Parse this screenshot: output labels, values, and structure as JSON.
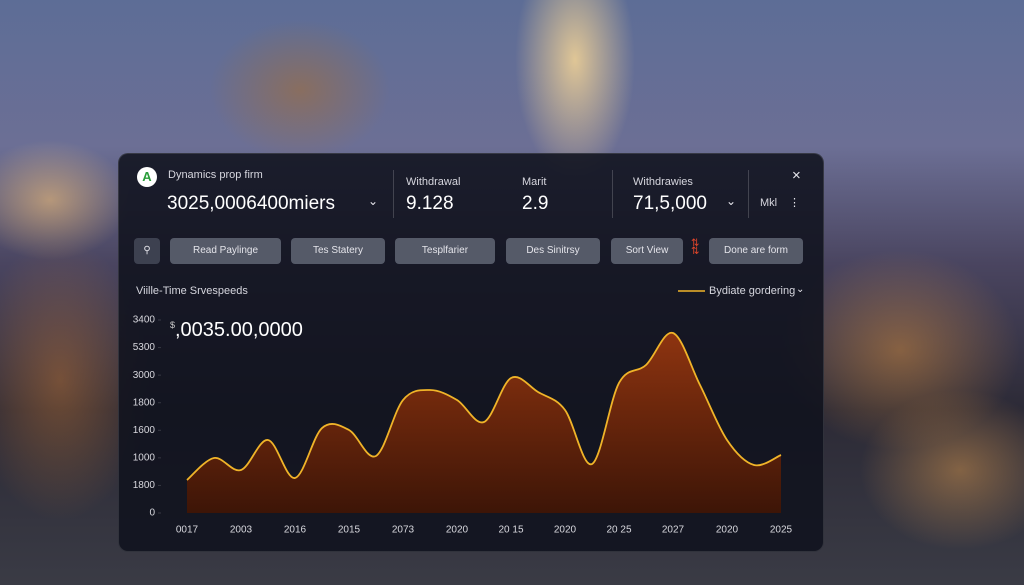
{
  "header": {
    "logo": "A",
    "brand": "Dynamics prop firm",
    "account": "3025,0006400miers",
    "stats": [
      {
        "label": "Withdrawal",
        "value": "9.128"
      },
      {
        "label": "Marit",
        "value": "2.9"
      },
      {
        "label": "Withdrawies",
        "value": "71,5,000"
      }
    ],
    "menu": "Mkl"
  },
  "toolbar": {
    "buttons": [
      "Read Paylinge",
      "Tes Statery",
      "Tesplfarier",
      "Des Sinitrsy",
      "Sort View",
      "Done are form"
    ]
  },
  "chart_data": {
    "type": "area",
    "title": "Viille-Time Srvespeeds",
    "currency": "$",
    "headline": ",0035.00,0000",
    "categories": [
      "0017",
      null,
      "2003",
      null,
      "2016",
      null,
      "2015",
      null,
      "2073",
      null,
      "2020",
      null,
      "20 15",
      null,
      "2020",
      null,
      "20 25",
      null,
      "2027",
      null,
      "2020",
      null,
      "2025"
    ],
    "series": [
      {
        "name": "Bydiate gordering",
        "color": "#f0b429",
        "values": [
          598,
          997,
          780,
          1324,
          635,
          1541,
          1505,
          1034,
          2049,
          2230,
          2049,
          1650,
          2448,
          2194,
          1868,
          888,
          2358,
          2684,
          3264,
          2321,
          1324,
          870,
          1052
        ]
      }
    ],
    "ylim": [
      0,
      3500
    ],
    "yticks": [
      0,
      {
        "value": 500,
        "label": "1800"
      },
      {
        "value": 1000,
        "label": "1000"
      },
      {
        "value": 1500,
        "label": "1600"
      },
      {
        "value": 2000,
        "label": "1800"
      },
      {
        "value": 2500,
        "label": "3000"
      },
      {
        "value": 3000,
        "label": "5300"
      },
      {
        "value": 3500,
        "label": "3400"
      }
    ],
    "grid": false
  }
}
